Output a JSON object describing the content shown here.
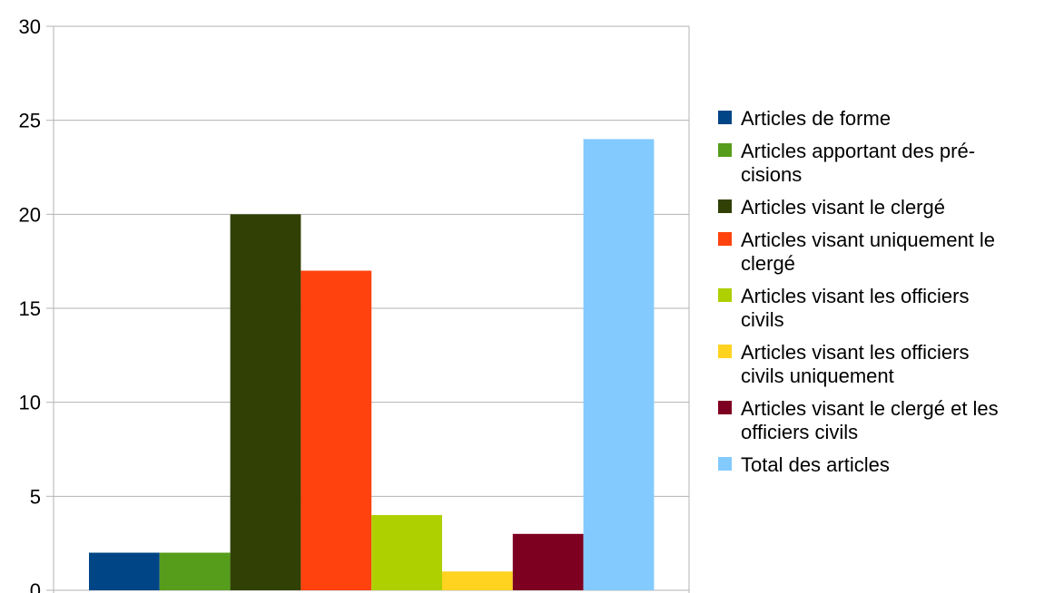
{
  "chart_data": {
    "type": "bar",
    "series": [
      {
        "name": "Articles de forme",
        "value": 2,
        "color": "#004586",
        "legend_lines": [
          "Articles de forme"
        ]
      },
      {
        "name": "Articles apportant des précisions",
        "value": 2,
        "color": "#579D1C",
        "legend_lines": [
          "Articles apportant des pré-",
          "cisions"
        ]
      },
      {
        "name": "Articles visant le clergé",
        "value": 20,
        "color": "#314004",
        "legend_lines": [
          "Articles visant le clergé"
        ]
      },
      {
        "name": "Articles visant uniquement le clergé",
        "value": 17,
        "color": "#FF420E",
        "legend_lines": [
          "Articles visant uniquement le",
          "clergé"
        ]
      },
      {
        "name": "Articles visant les officiers civils",
        "value": 4,
        "color": "#AECF00",
        "legend_lines": [
          "Articles visant les officiers",
          "civils"
        ]
      },
      {
        "name": "Articles visant les officiers civils uniquement",
        "value": 1,
        "color": "#FFD320",
        "legend_lines": [
          "Articles visant les officiers",
          "civils uniquement"
        ]
      },
      {
        "name": "Articles visant le clergé et les officiers civils",
        "value": 3,
        "color": "#7E0021",
        "legend_lines": [
          "Articles visant le clergé et les",
          "officiers civils"
        ]
      },
      {
        "name": "Total des articles",
        "value": 24,
        "color": "#83CAFF",
        "legend_lines": [
          "Total des articles"
        ]
      }
    ],
    "ylim": [
      0,
      30
    ],
    "yticks": [
      0,
      5,
      10,
      15,
      20,
      25,
      30
    ],
    "grid": true,
    "legend_position": "right",
    "gridline_color": "#b3b3b3"
  }
}
